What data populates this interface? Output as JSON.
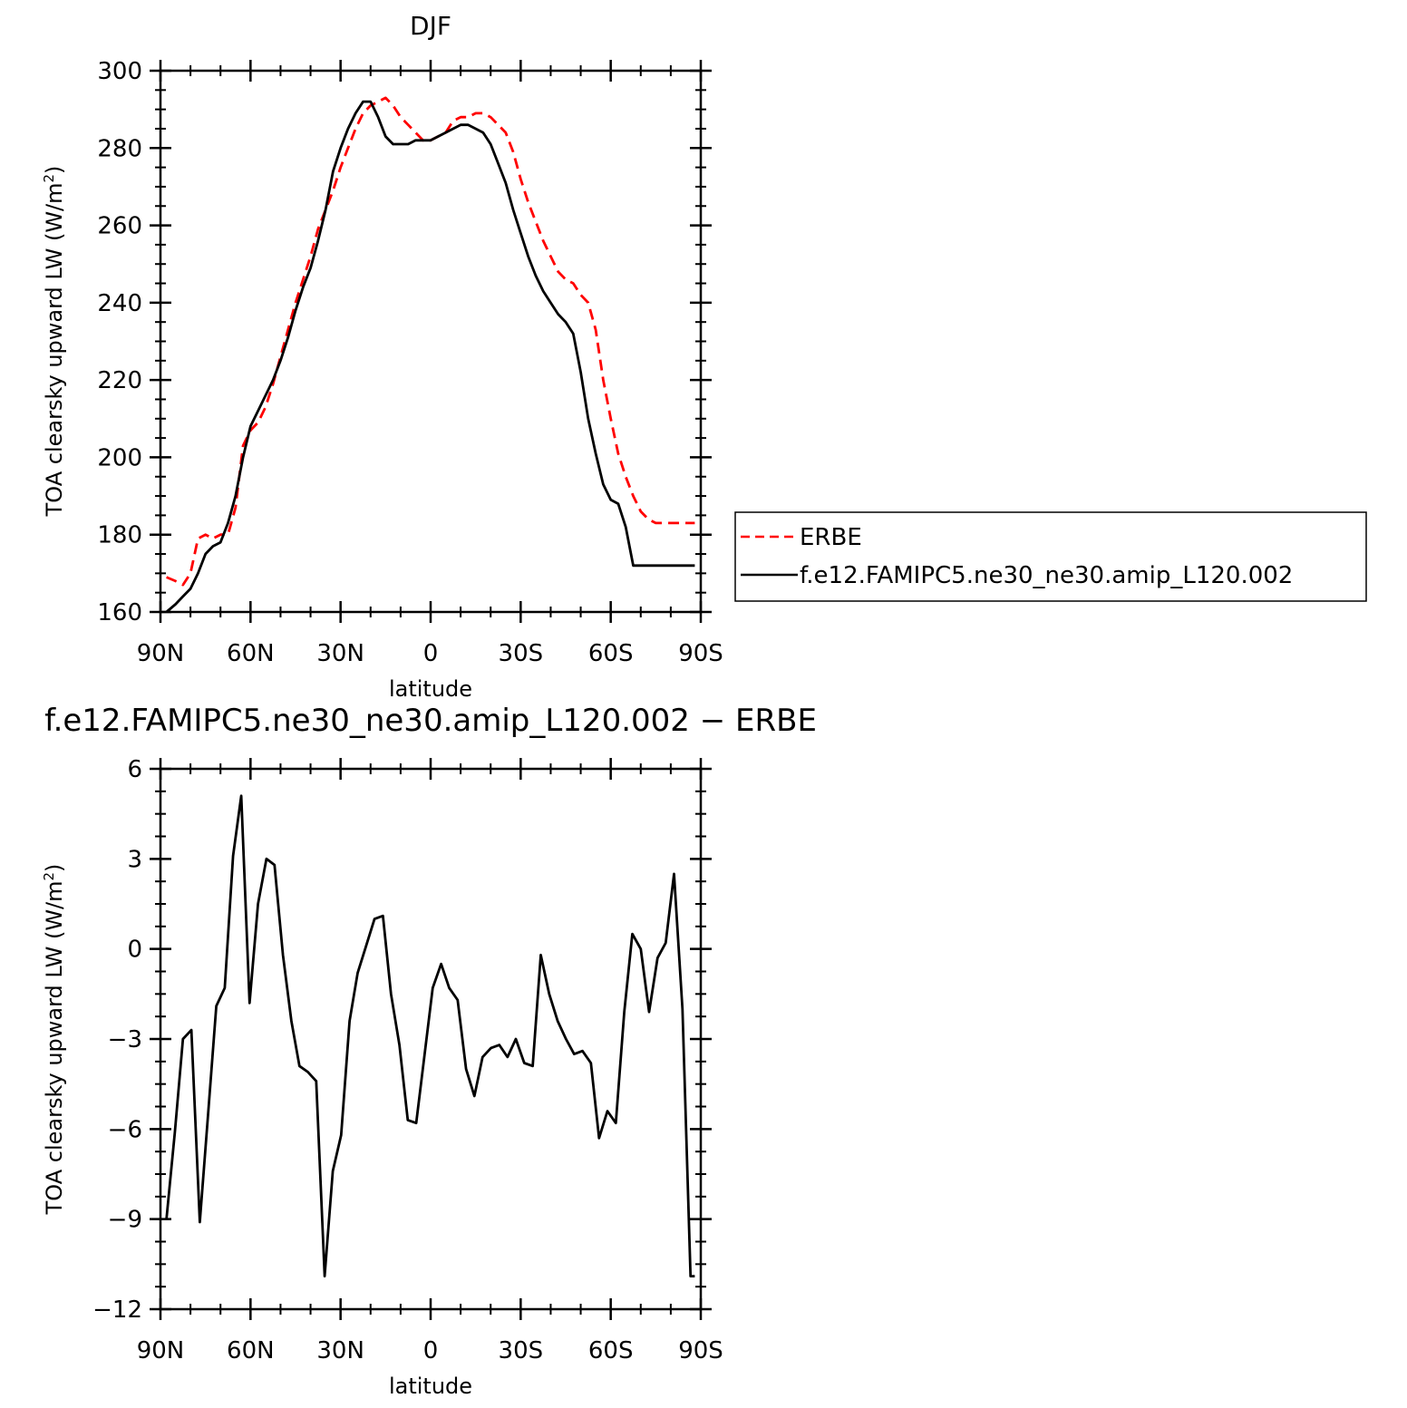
{
  "chart_data": [
    {
      "type": "line",
      "title": "DJF",
      "xlabel": "latitude",
      "ylabel": "TOA clearsky upward LW (W/m",
      "ylabel_sup": "2",
      "ylabel_end": ")",
      "xlim": [
        -90,
        90
      ],
      "ylim": [
        160,
        300
      ],
      "x_ticks": [
        -90,
        -60,
        -30,
        0,
        30,
        60,
        90
      ],
      "x_tick_labels": [
        "90N",
        "60N",
        "30N",
        "0",
        "30S",
        "60S",
        "90S"
      ],
      "y_ticks": [
        160,
        180,
        200,
        220,
        240,
        260,
        280,
        300
      ],
      "y_tick_labels": [
        "160",
        "180",
        "200",
        "220",
        "240",
        "260",
        "280",
        "300"
      ],
      "grid": false,
      "legend_position": "right",
      "series": [
        {
          "name": "ERBE",
          "color": "#ff0000",
          "dash": "dashed",
          "x": [
            -88,
            -85,
            -82.5,
            -80,
            -77.5,
            -75,
            -72.5,
            -70,
            -67.5,
            -65,
            -62.5,
            -60,
            -57.5,
            -55,
            -52.5,
            -50,
            -47.5,
            -45,
            -42.5,
            -40,
            -37.5,
            -35,
            -32.5,
            -30,
            -27.5,
            -25,
            -22.5,
            -20,
            -17.5,
            -15,
            -12.5,
            -10,
            -7.5,
            -5,
            -2.5,
            0,
            2.5,
            5,
            7.5,
            10,
            12.5,
            15,
            17.5,
            20,
            22.5,
            25,
            27.5,
            30,
            32.5,
            35,
            37.5,
            40,
            42.5,
            45,
            47.5,
            50,
            52.5,
            55,
            57.5,
            60,
            62.5,
            65,
            67.5,
            70,
            72.5,
            75,
            77.5,
            80,
            82.5,
            85,
            88
          ],
          "values": [
            169,
            168,
            167,
            170,
            179,
            180,
            179,
            180,
            180,
            187,
            203,
            207,
            209,
            213,
            219,
            226,
            233,
            240,
            246,
            252,
            259,
            264,
            269,
            275,
            280,
            285,
            289,
            291,
            292,
            293,
            291,
            288,
            286,
            284,
            282,
            282,
            283,
            284,
            287,
            288,
            288,
            289,
            289,
            288,
            286,
            284,
            279,
            272,
            266,
            261,
            256,
            252,
            248,
            246,
            245,
            242,
            240,
            233,
            220,
            210,
            201,
            195,
            190,
            186,
            184,
            183,
            183,
            183,
            183,
            183,
            183
          ]
        },
        {
          "name": "f.e12.FAMIPC5.ne30_ne30.amip_L120.002",
          "color": "#000000",
          "dash": "solid",
          "x": [
            -88,
            -85,
            -82.5,
            -80,
            -77.5,
            -75,
            -72.5,
            -70,
            -67.5,
            -65,
            -62.5,
            -60,
            -57.5,
            -55,
            -52.5,
            -50,
            -47.5,
            -45,
            -42.5,
            -40,
            -37.5,
            -35,
            -32.5,
            -30,
            -27.5,
            -25,
            -22.5,
            -20,
            -17.5,
            -15,
            -12.5,
            -10,
            -7.5,
            -5,
            -2.5,
            0,
            2.5,
            5,
            7.5,
            10,
            12.5,
            15,
            17.5,
            20,
            22.5,
            25,
            27.5,
            30,
            32.5,
            35,
            37.5,
            40,
            42.5,
            45,
            47.5,
            50,
            52.5,
            55,
            57.5,
            60,
            62.5,
            65,
            67.5,
            70,
            72.5,
            75,
            77.5,
            80,
            82.5,
            85,
            88
          ],
          "values": [
            160,
            162,
            164,
            166,
            170,
            175,
            177,
            178,
            183,
            190,
            200,
            208,
            212,
            216,
            220,
            225,
            231,
            238,
            244,
            249,
            256,
            264,
            274,
            280,
            285,
            289,
            292,
            292,
            288,
            283,
            281,
            281,
            281,
            282,
            282,
            282,
            283,
            284,
            285,
            286,
            286,
            285,
            284,
            281,
            276,
            271,
            264,
            258,
            252,
            247,
            243,
            240,
            237,
            235,
            232,
            222,
            210,
            201,
            193,
            189,
            188,
            182,
            172,
            172,
            172,
            172,
            172,
            172,
            172,
            172,
            172
          ]
        }
      ]
    },
    {
      "type": "line",
      "title": "f.e12.FAMIPC5.ne30_ne30.amip_L120.002 − ERBE",
      "xlabel": "latitude",
      "ylabel": "TOA clearsky upward LW (W/m",
      "ylabel_sup": "2",
      "ylabel_end": ")",
      "xlim": [
        -90,
        90
      ],
      "ylim": [
        -12,
        6
      ],
      "x_ticks": [
        -90,
        -60,
        -30,
        0,
        30,
        60,
        90
      ],
      "x_tick_labels": [
        "90N",
        "60N",
        "30N",
        "0",
        "30S",
        "60S",
        "90S"
      ],
      "y_ticks": [
        -12,
        -9,
        -6,
        -3,
        0,
        3,
        6
      ],
      "y_tick_labels": [
        "−12",
        "−9",
        "−6",
        "−3",
        "0",
        "3",
        "6"
      ],
      "grid": false,
      "series": [
        {
          "color": "#000000",
          "dash": "solid",
          "x": [
            -88,
            -85.2,
            -82.5,
            -79.7,
            -76.9,
            -74.2,
            -71.4,
            -68.6,
            -65.8,
            -63.1,
            -60.3,
            -57.5,
            -54.7,
            -52,
            -49.2,
            -46.4,
            -43.7,
            -40.9,
            -38.1,
            -35.3,
            -32.6,
            -29.8,
            -27,
            -24.3,
            -21.5,
            -18.7,
            -15.9,
            -13.2,
            -10.4,
            -7.6,
            -4.8,
            -2.1,
            0.7,
            3.5,
            6.2,
            9,
            11.8,
            14.6,
            17.3,
            20.1,
            22.9,
            25.6,
            28.4,
            31.2,
            34,
            36.7,
            39.5,
            42.3,
            45.1,
            47.8,
            50.6,
            53.4,
            56.1,
            58.9,
            61.7,
            64.5,
            67.2,
            70,
            72.8,
            75.6,
            78.3,
            81.1,
            83.9,
            86.6,
            88
          ],
          "values": [
            -9,
            -6.1,
            -3,
            -2.7,
            -9.1,
            -5.6,
            -1.9,
            -1.3,
            3.1,
            5.1,
            -1.8,
            1.5,
            3.0,
            2.8,
            -0.2,
            -2.4,
            -3.9,
            -4.1,
            -4.4,
            -10.9,
            -7.4,
            -6.2,
            -2.4,
            -0.8,
            0.1,
            1.0,
            1.1,
            -1.5,
            -3.2,
            -5.7,
            -5.8,
            -3.6,
            -1.3,
            -0.5,
            -1.3,
            -1.7,
            -4.0,
            -4.9,
            -3.6,
            -3.3,
            -3.2,
            -3.6,
            -3.0,
            -3.8,
            -3.9,
            -0.2,
            -1.5,
            -2.4,
            -3.0,
            -3.5,
            -3.4,
            -3.8,
            -6.3,
            -5.4,
            -5.8,
            -2.1,
            0.5,
            0.0,
            -2.1,
            -0.3,
            0.2,
            2.5,
            -2.0,
            -10.9,
            -10.9
          ]
        }
      ]
    }
  ]
}
